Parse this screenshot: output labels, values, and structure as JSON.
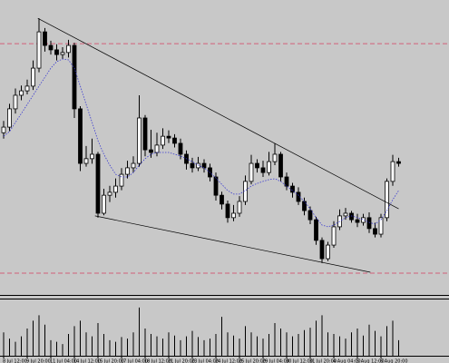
{
  "chart_data": {
    "type": "candlestick",
    "categories": [
      "8 Jul 12:00",
      null,
      null,
      null,
      "9 Jul 20:00",
      null,
      null,
      null,
      "11 Jul 04:00",
      null,
      null,
      null,
      "14 Jul 12:00",
      null,
      null,
      null,
      "15 Jul 20:00",
      null,
      null,
      null,
      "17 Jul 04:00",
      null,
      null,
      null,
      "18 Jul 12:00",
      null,
      null,
      null,
      "21 Jul 20:00",
      null,
      null,
      null,
      "23 Jul 04:00",
      null,
      null,
      null,
      "24 Jul 12:00",
      null,
      null,
      null,
      "25 Jul 20:00",
      null,
      null,
      null,
      "29 Jul 04:00",
      null,
      null,
      null,
      "30 Jul 12:00",
      null,
      null,
      null,
      "31 Jul 20:00",
      null,
      null,
      null,
      "4 Aug 04:00",
      null,
      null,
      null,
      "5 Aug 12:00",
      null,
      null,
      null,
      "6 Aug 20:00",
      null,
      null,
      null
    ],
    "open": [
      55.0,
      56.9,
      63.1,
      67.7,
      69.2,
      70.8,
      76.9,
      89.2,
      84.6,
      83.1,
      81.5,
      82.2,
      84.6,
      63.1,
      44.6,
      46.2,
      47.7,
      27.7,
      33.8,
      34.8,
      36.9,
      40.9,
      43.1,
      44.6,
      60.0,
      49.2,
      48.3,
      50.8,
      53.8,
      53.2,
      51.4,
      47.7,
      44.6,
      43.1,
      44.6,
      43.1,
      40.0,
      33.8,
      30.8,
      26.2,
      27.7,
      31.7,
      38.5,
      44.6,
      43.1,
      41.5,
      45.2,
      47.7,
      40.0,
      36.9,
      34.8,
      31.7,
      28.6,
      25.5,
      18.5,
      12.3,
      16.9,
      23.1,
      26.8,
      27.7,
      25.5,
      24.6,
      26.2,
      22.5,
      20.6,
      26.2,
      38.5,
      45.2
    ],
    "high": [
      59.0,
      64.8,
      70.0,
      71.0,
      73.0,
      79.5,
      93.8,
      90.5,
      86.2,
      85.0,
      84.0,
      86.5,
      85.5,
      64.0,
      50.5,
      53.0,
      48.5,
      36.0,
      37.0,
      39.5,
      43.0,
      45.5,
      47.0,
      67.7,
      61.0,
      56.0,
      55.0,
      56.5,
      55.8,
      54.5,
      53.0,
      49.0,
      46.5,
      46.8,
      46.0,
      44.5,
      41.5,
      35.0,
      32.0,
      30.5,
      33.5,
      40.5,
      47.5,
      46.0,
      45.5,
      48.5,
      51.4,
      48.5,
      41.5,
      38.0,
      36.5,
      33.0,
      30.0,
      26.5,
      19.5,
      18.0,
      25.0,
      29.0,
      29.5,
      28.5,
      27.5,
      27.5,
      28.0,
      24.5,
      27.5,
      39.5,
      47.5,
      46.5
    ],
    "low": [
      53.0,
      55.5,
      61.5,
      66.0,
      68.0,
      69.5,
      75.5,
      82.5,
      81.5,
      79.5,
      80.0,
      80.5,
      60.0,
      42.0,
      43.5,
      44.5,
      26.2,
      27.0,
      31.5,
      33.0,
      35.5,
      39.5,
      41.5,
      43.5,
      47.0,
      46.5,
      47.0,
      49.5,
      51.5,
      50.0,
      46.0,
      42.5,
      41.5,
      42.0,
      41.5,
      38.5,
      32.0,
      29.0,
      24.5,
      25.0,
      26.5,
      30.5,
      37.5,
      41.5,
      40.0,
      40.5,
      44.0,
      38.5,
      35.5,
      33.0,
      30.5,
      27.0,
      24.0,
      17.0,
      10.8,
      11.5,
      16.0,
      22.0,
      25.5,
      24.5,
      23.0,
      23.5,
      21.0,
      19.5,
      19.5,
      25.0,
      37.0,
      43.5
    ],
    "close": [
      56.9,
      63.1,
      67.7,
      69.2,
      70.8,
      76.9,
      89.2,
      84.6,
      83.1,
      81.5,
      82.2,
      84.6,
      63.1,
      44.6,
      46.2,
      47.7,
      27.7,
      33.8,
      34.8,
      36.9,
      40.9,
      43.1,
      44.6,
      60.0,
      49.2,
      48.3,
      50.8,
      53.8,
      53.2,
      51.4,
      47.7,
      44.6,
      43.1,
      44.6,
      43.1,
      40.0,
      33.8,
      30.8,
      26.2,
      27.7,
      31.7,
      38.5,
      44.6,
      43.1,
      41.5,
      45.2,
      47.7,
      40.0,
      36.9,
      34.8,
      31.7,
      28.6,
      25.5,
      18.5,
      12.3,
      16.9,
      23.1,
      26.8,
      27.7,
      25.5,
      24.6,
      26.2,
      22.5,
      20.6,
      26.2,
      38.5,
      45.2,
      44.6
    ],
    "ma": [
      53.8,
      55.4,
      58.5,
      61.5,
      64.6,
      67.7,
      70.8,
      73.8,
      76.9,
      79.1,
      80.0,
      79.7,
      76.9,
      70.8,
      64.6,
      58.5,
      52.3,
      47.7,
      44.0,
      40.9,
      40.0,
      40.0,
      41.5,
      44.0,
      46.2,
      47.7,
      48.3,
      48.3,
      48.3,
      47.7,
      47.1,
      46.2,
      45.2,
      44.0,
      43.1,
      41.5,
      39.7,
      37.5,
      35.4,
      34.2,
      34.2,
      35.4,
      36.9,
      37.8,
      38.5,
      39.1,
      39.4,
      38.5,
      36.9,
      35.4,
      33.8,
      31.7,
      29.2,
      26.2,
      23.7,
      23.1,
      23.7,
      24.9,
      26.2,
      26.8,
      26.2,
      25.5,
      24.6,
      24.0,
      25.5,
      28.6,
      32.3,
      35.4
    ],
    "volume": [
      30,
      22,
      18,
      25,
      35,
      45,
      52,
      40,
      20,
      18,
      15,
      28,
      38,
      45,
      30,
      25,
      42,
      28,
      20,
      18,
      24,
      22,
      30,
      62,
      35,
      28,
      25,
      22,
      30,
      26,
      20,
      25,
      32,
      24,
      20,
      22,
      28,
      50,
      30,
      26,
      22,
      38,
      30,
      25,
      22,
      28,
      42,
      35,
      30,
      25,
      28,
      33,
      36,
      45,
      52,
      30,
      28,
      25,
      22,
      30,
      35,
      26,
      40,
      32,
      25,
      38,
      45,
      20
    ],
    "ylim": [
      0,
      100
    ],
    "volume_ylim": [
      0,
      70
    ],
    "hlines": [
      85.2,
      7.4
    ],
    "trendlines": [
      {
        "x1": 5.8,
        "y1": 93.8,
        "x2": 67,
        "y2": 29.2
      },
      {
        "x1": 15.5,
        "y1": 26.8,
        "x2": 62.2,
        "y2": 7.7
      }
    ],
    "bull_color": "#ffffff",
    "bear_color": "#000000",
    "ma_color": "#3a3ad0",
    "hline_color": "#d2607a"
  }
}
